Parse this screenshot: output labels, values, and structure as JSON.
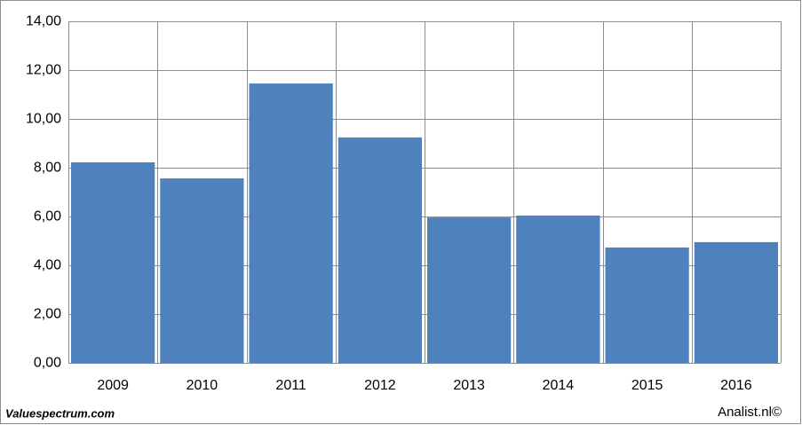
{
  "chart_data": {
    "type": "bar",
    "categories": [
      "2009",
      "2010",
      "2011",
      "2012",
      "2013",
      "2014",
      "2015",
      "2016"
    ],
    "values": [
      8.22,
      7.56,
      11.45,
      9.24,
      5.96,
      6.04,
      4.73,
      4.95
    ],
    "color": "#4f81bd",
    "ylim": [
      0,
      14
    ],
    "yticks": [
      {
        "value": 0,
        "label": "0,00"
      },
      {
        "value": 2,
        "label": "2,00"
      },
      {
        "value": 4,
        "label": "4,00"
      },
      {
        "value": 6,
        "label": "6,00"
      },
      {
        "value": 8,
        "label": "8,00"
      },
      {
        "value": 10,
        "label": "10,00"
      },
      {
        "value": 12,
        "label": "12,00"
      },
      {
        "value": 14,
        "label": "14,00"
      }
    ],
    "grid": true,
    "source": "Valuespectrum.com",
    "credit": "Analist.nl©"
  }
}
